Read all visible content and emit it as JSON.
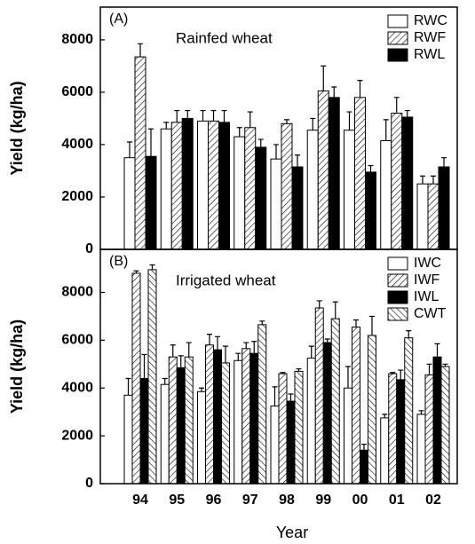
{
  "chart_data": [
    {
      "type": "bar",
      "label": "(A)",
      "title": "Rainfed wheat",
      "ylabel": "Yield (kg/ha)",
      "ylim": [
        0,
        9250
      ],
      "yticks": [
        0,
        2000,
        4000,
        6000,
        8000
      ],
      "legend": "upper right",
      "series": [
        {
          "name": "RWC",
          "color": "#ffffff",
          "values": [
            3500,
            4600,
            4900,
            4300,
            3450,
            4550,
            4550,
            4150,
            2500
          ],
          "errors": [
            600,
            250,
            400,
            350,
            550,
            450,
            700,
            800,
            300
          ]
        },
        {
          "name": "RWF",
          "color": "#ffffff",
          "hatch": "forward",
          "values": [
            7350,
            4850,
            4900,
            4650,
            4800,
            6050,
            5800,
            5200,
            2500
          ],
          "errors": [
            500,
            450,
            400,
            600,
            150,
            950,
            650,
            600,
            300
          ]
        },
        {
          "name": "RWL",
          "color": "#000000",
          "values": [
            3550,
            5000,
            4850,
            3900,
            3150,
            5800,
            2950,
            5050,
            3150
          ],
          "errors": [
            1050,
            300,
            450,
            300,
            450,
            400,
            250,
            250,
            350
          ]
        }
      ]
    },
    {
      "type": "bar",
      "label": "(B)",
      "title": "Irrigated wheat",
      "ylabel": "Yield (kg/ha)",
      "xlabel": "Year",
      "categories": [
        "94",
        "95",
        "96",
        "97",
        "98",
        "99",
        "00",
        "01",
        "02"
      ],
      "ylim": [
        0,
        9800
      ],
      "yticks": [
        0,
        2000,
        4000,
        6000,
        8000
      ],
      "legend": "upper right",
      "series": [
        {
          "name": "IWC",
          "color": "#ffffff",
          "values": [
            3700,
            4150,
            3850,
            5150,
            3250,
            5250,
            4000,
            2750,
            2900
          ],
          "errors": [
            700,
            250,
            150,
            300,
            800,
            500,
            900,
            150,
            150
          ]
        },
        {
          "name": "IWF",
          "color": "#ffffff",
          "hatch": "forward",
          "values": [
            8800,
            5300,
            5800,
            5650,
            4600,
            7350,
            6550,
            4600,
            4550
          ],
          "errors": [
            100,
            500,
            450,
            250,
            50,
            300,
            300,
            50,
            450
          ]
        },
        {
          "name": "IWL",
          "color": "#000000",
          "values": [
            4400,
            4850,
            5600,
            5450,
            3450,
            5900,
            1400,
            4350,
            5300
          ],
          "errors": [
            1000,
            500,
            550,
            500,
            300,
            150,
            250,
            400,
            550
          ]
        },
        {
          "name": "CWT",
          "color": "#ffffff",
          "hatch": "backward",
          "values": [
            8950,
            5300,
            5050,
            6650,
            4700,
            6900,
            6200,
            6100,
            4900
          ],
          "errors": [
            200,
            600,
            700,
            150,
            100,
            700,
            800,
            300,
            100
          ]
        }
      ]
    }
  ]
}
